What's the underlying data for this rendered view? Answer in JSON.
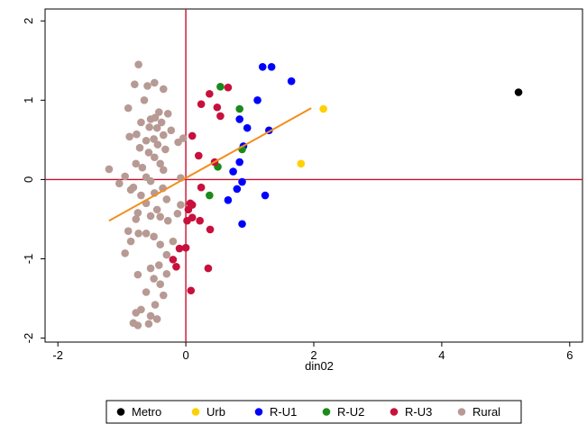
{
  "chart_data": {
    "type": "scatter",
    "title": "",
    "xlabel": "din02",
    "ylabel": "",
    "xlim": [
      -2.2,
      6.2
    ],
    "ylim": [
      -2.05,
      2.15
    ],
    "xticks": [
      -2,
      0,
      2,
      4,
      6
    ],
    "yticks": [
      -2,
      -1,
      0,
      1,
      2
    ],
    "grid": false,
    "legend_position": "bottom",
    "reference_lines": {
      "x": 0,
      "y": 0,
      "color": "#c8102e"
    },
    "fit_line": {
      "x": [
        -1.2,
        1.96
      ],
      "y": [
        -0.52,
        0.9
      ],
      "color": "#f28e1c"
    },
    "series": [
      {
        "name": "Metro",
        "color": "#000000",
        "points": [
          [
            5.2,
            1.1
          ]
        ]
      },
      {
        "name": "Urb",
        "color": "#ffd000",
        "points": [
          [
            2.15,
            0.89
          ],
          [
            1.8,
            0.2
          ]
        ]
      },
      {
        "name": "R-U1",
        "color": "#0000ff",
        "points": [
          [
            1.2,
            1.42
          ],
          [
            1.34,
            1.42
          ],
          [
            1.65,
            1.24
          ],
          [
            1.12,
            1.0
          ],
          [
            0.84,
            0.76
          ],
          [
            0.96,
            0.65
          ],
          [
            1.3,
            0.62
          ],
          [
            0.9,
            0.42
          ],
          [
            0.84,
            0.22
          ],
          [
            0.74,
            0.1
          ],
          [
            0.88,
            -0.03
          ],
          [
            0.8,
            -0.12
          ],
          [
            0.66,
            -0.26
          ],
          [
            1.24,
            -0.2
          ],
          [
            0.88,
            -0.56
          ]
        ]
      },
      {
        "name": "R-U2",
        "color": "#1a8a1a",
        "points": [
          [
            0.54,
            1.17
          ],
          [
            0.84,
            0.89
          ],
          [
            0.88,
            0.38
          ],
          [
            0.5,
            0.16
          ],
          [
            0.37,
            -0.2
          ]
        ]
      },
      {
        "name": "R-U3",
        "color": "#c8103c",
        "points": [
          [
            0.37,
            1.08
          ],
          [
            0.66,
            1.16
          ],
          [
            0.24,
            0.95
          ],
          [
            0.49,
            0.91
          ],
          [
            0.54,
            0.8
          ],
          [
            0.1,
            0.55
          ],
          [
            0.2,
            0.3
          ],
          [
            0.45,
            0.22
          ],
          [
            0.24,
            -0.1
          ],
          [
            0.07,
            -0.3
          ],
          [
            0.1,
            -0.32
          ],
          [
            0.04,
            -0.38
          ],
          [
            0.02,
            -0.52
          ],
          [
            0.1,
            -0.48
          ],
          [
            0.22,
            -0.52
          ],
          [
            0.38,
            -0.63
          ],
          [
            0.0,
            -0.86
          ],
          [
            -0.1,
            -0.87
          ],
          [
            -0.2,
            -1.01
          ],
          [
            -0.15,
            -1.1
          ],
          [
            0.35,
            -1.12
          ],
          [
            0.08,
            -1.4
          ]
        ]
      },
      {
        "name": "Rural",
        "color": "#b79a94",
        "points": [
          [
            -0.74,
            1.45
          ],
          [
            -0.49,
            1.22
          ],
          [
            -0.6,
            1.18
          ],
          [
            -0.8,
            1.2
          ],
          [
            -0.35,
            1.14
          ],
          [
            -0.65,
            1.0
          ],
          [
            -0.9,
            0.9
          ],
          [
            -0.42,
            0.85
          ],
          [
            -0.28,
            0.83
          ],
          [
            -0.55,
            0.76
          ],
          [
            -0.48,
            0.78
          ],
          [
            -0.7,
            0.72
          ],
          [
            -0.38,
            0.72
          ],
          [
            -0.57,
            0.66
          ],
          [
            -0.45,
            0.65
          ],
          [
            -0.23,
            0.62
          ],
          [
            -0.77,
            0.57
          ],
          [
            -0.35,
            0.56
          ],
          [
            -0.88,
            0.54
          ],
          [
            -0.62,
            0.49
          ],
          [
            -0.5,
            0.51
          ],
          [
            -0.44,
            0.44
          ],
          [
            -0.04,
            0.52
          ],
          [
            -0.12,
            0.47
          ],
          [
            -0.72,
            0.4
          ],
          [
            -0.32,
            0.38
          ],
          [
            -0.58,
            0.34
          ],
          [
            -0.49,
            0.28
          ],
          [
            -0.78,
            0.2
          ],
          [
            -0.4,
            0.2
          ],
          [
            -0.68,
            0.15
          ],
          [
            -0.35,
            0.12
          ],
          [
            -1.2,
            0.13
          ],
          [
            -0.95,
            0.04
          ],
          [
            -0.62,
            0.03
          ],
          [
            -1.04,
            -0.05
          ],
          [
            -0.55,
            -0.02
          ],
          [
            -0.08,
            0.02
          ],
          [
            -0.82,
            -0.1
          ],
          [
            -0.86,
            -0.13
          ],
          [
            -0.36,
            -0.11
          ],
          [
            -0.49,
            -0.17
          ],
          [
            -0.7,
            -0.2
          ],
          [
            -0.3,
            -0.25
          ],
          [
            -0.62,
            -0.3
          ],
          [
            -0.08,
            -0.32
          ],
          [
            -0.45,
            -0.38
          ],
          [
            -0.75,
            -0.42
          ],
          [
            -0.13,
            -0.43
          ],
          [
            -0.55,
            -0.46
          ],
          [
            -0.78,
            -0.5
          ],
          [
            -0.4,
            -0.47
          ],
          [
            -0.28,
            -0.52
          ],
          [
            -0.9,
            -0.65
          ],
          [
            -0.62,
            -0.68
          ],
          [
            -0.74,
            -0.68
          ],
          [
            -0.5,
            -0.72
          ],
          [
            -0.86,
            -0.78
          ],
          [
            -0.2,
            -0.78
          ],
          [
            -0.4,
            -0.82
          ],
          [
            -0.95,
            -0.93
          ],
          [
            -0.3,
            -0.95
          ],
          [
            -0.55,
            -1.12
          ],
          [
            -0.42,
            -1.08
          ],
          [
            -0.75,
            -1.2
          ],
          [
            -0.3,
            -1.19
          ],
          [
            -0.5,
            -1.25
          ],
          [
            -0.4,
            -1.32
          ],
          [
            -0.62,
            -1.42
          ],
          [
            -0.35,
            -1.46
          ],
          [
            -0.48,
            -1.58
          ],
          [
            -0.7,
            -1.64
          ],
          [
            -0.78,
            -1.68
          ],
          [
            -0.55,
            -1.72
          ],
          [
            -0.45,
            -1.76
          ],
          [
            -0.82,
            -1.81
          ],
          [
            -0.58,
            -1.82
          ],
          [
            -0.75,
            -1.84
          ]
        ]
      }
    ]
  }
}
